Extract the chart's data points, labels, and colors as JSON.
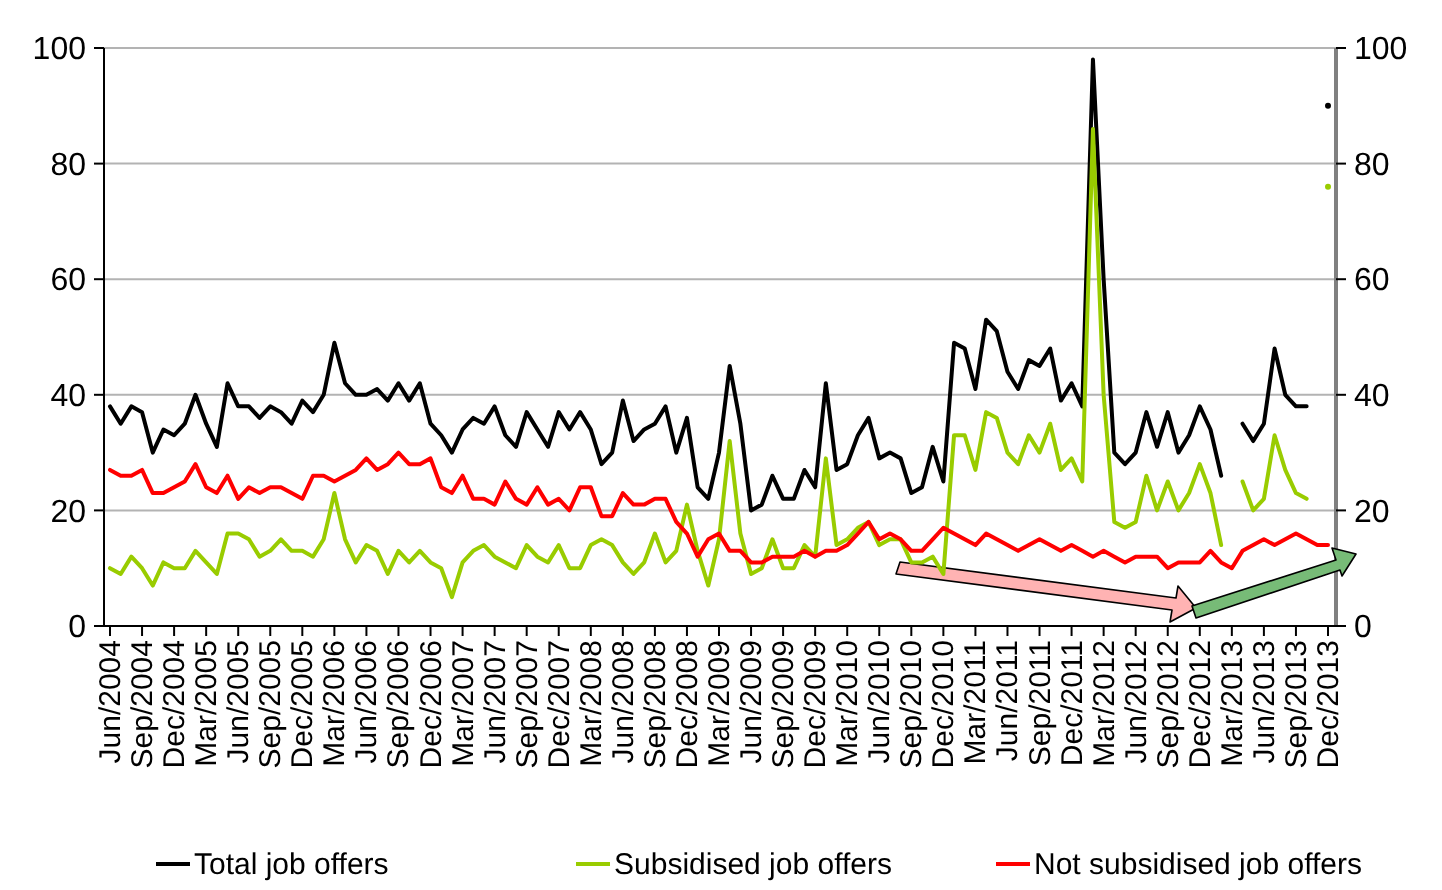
{
  "chart_data": {
    "type": "line",
    "categories": [
      "Jun/2004",
      null,
      null,
      "Sep/2004",
      null,
      null,
      "Dec/2004",
      null,
      null,
      "Mar/2005",
      null,
      null,
      "Jun/2005",
      null,
      null,
      "Sep/2005",
      null,
      null,
      "Dec/2005",
      null,
      null,
      "Mar/2006",
      null,
      null,
      "Jun/2006",
      null,
      null,
      "Sep/2006",
      null,
      null,
      "Dec/2006",
      null,
      null,
      "Mar/2007",
      null,
      null,
      "Jun/2007",
      null,
      null,
      "Sep/2007",
      null,
      null,
      "Dec/2007",
      null,
      null,
      "Mar/2008",
      null,
      null,
      "Jun/2008",
      null,
      null,
      "Sep/2008",
      null,
      null,
      "Dec/2008",
      null,
      null,
      "Mar/2009",
      null,
      null,
      "Jun/2009",
      null,
      null,
      "Sep/2009",
      null,
      null,
      "Dec/2009",
      null,
      null,
      "Mar/2010",
      null,
      null,
      "Jun/2010",
      null,
      null,
      "Sep/2010",
      null,
      null,
      "Dec/2010",
      null,
      null,
      "Mar/2011",
      null,
      null,
      "Jun/2011",
      null,
      null,
      "Sep/2011",
      null,
      null,
      "Dec/2011",
      null,
      null,
      "Mar/2012",
      null,
      null,
      "Jun/2012",
      null,
      null,
      "Sep/2012",
      null,
      null,
      "Dec/2012",
      null,
      null,
      "Mar/2013",
      null,
      null,
      "Jun/2013",
      null,
      null,
      "Sep/2013",
      null,
      null,
      "Dec/2013"
    ],
    "series": [
      {
        "name": "Total job offers",
        "color": "#000000",
        "values": [
          38,
          35,
          38,
          37,
          30,
          34,
          33,
          35,
          40,
          35,
          31,
          42,
          38,
          38,
          36,
          38,
          37,
          35,
          39,
          37,
          40,
          49,
          42,
          40,
          40,
          41,
          39,
          42,
          39,
          42,
          35,
          33,
          30,
          34,
          36,
          35,
          38,
          33,
          31,
          37,
          34,
          31,
          37,
          34,
          37,
          34,
          28,
          30,
          39,
          32,
          34,
          35,
          38,
          30,
          36,
          24,
          22,
          30,
          45,
          35,
          20,
          21,
          26,
          22,
          22,
          27,
          24,
          42,
          27,
          28,
          33,
          36,
          29,
          30,
          29,
          23,
          24,
          31,
          25,
          49,
          48,
          41,
          53,
          51,
          44,
          41,
          46,
          45,
          48,
          39,
          42,
          38,
          98,
          60,
          30,
          28,
          30,
          37,
          31,
          37,
          30,
          33,
          38,
          34,
          26,
          null,
          35,
          32,
          35,
          48,
          40,
          38,
          38,
          null,
          90
        ]
      },
      {
        "name": "Subsidised job offers",
        "color": "#99cc00",
        "values": [
          10,
          9,
          12,
          10,
          7,
          11,
          10,
          10,
          13,
          11,
          9,
          16,
          16,
          15,
          12,
          13,
          15,
          13,
          13,
          12,
          15,
          23,
          15,
          11,
          14,
          13,
          9,
          13,
          11,
          13,
          11,
          10,
          5,
          11,
          13,
          14,
          12,
          11,
          10,
          14,
          12,
          11,
          14,
          10,
          10,
          14,
          15,
          14,
          11,
          9,
          11,
          16,
          11,
          13,
          21,
          13,
          7,
          15,
          32,
          16,
          9,
          10,
          15,
          10,
          10,
          14,
          12,
          29,
          14,
          15,
          17,
          18,
          14,
          15,
          15,
          11,
          11,
          12,
          9,
          33,
          33,
          27,
          37,
          36,
          30,
          28,
          33,
          30,
          35,
          27,
          29,
          25,
          86,
          40,
          18,
          17,
          18,
          26,
          20,
          25,
          20,
          23,
          28,
          23,
          14,
          null,
          25,
          20,
          22,
          33,
          27,
          23,
          22,
          null,
          76
        ]
      },
      {
        "name": "Not subsidised job offers",
        "color": "#ff0000",
        "values": [
          27,
          26,
          26,
          27,
          23,
          23,
          24,
          25,
          28,
          24,
          23,
          26,
          22,
          24,
          23,
          24,
          24,
          23,
          22,
          26,
          26,
          25,
          26,
          27,
          29,
          27,
          28,
          30,
          28,
          28,
          29,
          24,
          23,
          26,
          22,
          22,
          21,
          25,
          22,
          21,
          24,
          21,
          22,
          20,
          24,
          24,
          19,
          19,
          23,
          21,
          21,
          22,
          22,
          18,
          16,
          12,
          15,
          16,
          13,
          13,
          11,
          11,
          12,
          12,
          12,
          13,
          12,
          13,
          13,
          14,
          16,
          18,
          15,
          16,
          15,
          13,
          13,
          15,
          17,
          16,
          15,
          14,
          16,
          15,
          14,
          13,
          14,
          15,
          14,
          13,
          14,
          13,
          12,
          13,
          12,
          11,
          12,
          12,
          12,
          10,
          11,
          11,
          11,
          13,
          11,
          10,
          13,
          14,
          15,
          14,
          15,
          16,
          15,
          14,
          14
        ]
      }
    ],
    "ylim": [
      0,
      100
    ],
    "yticks": [
      0,
      20,
      40,
      60,
      80,
      100
    ],
    "y2lim": [
      0,
      100
    ],
    "y2ticks": [
      0,
      20,
      40,
      60,
      80,
      100
    ],
    "grid": "y",
    "legend": "bottom",
    "marker": "none",
    "line_style": "solid"
  }
}
